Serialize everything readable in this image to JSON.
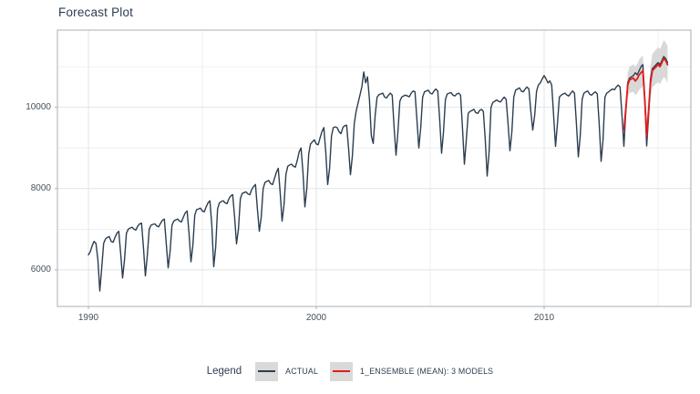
{
  "page": {
    "title": "Forecast Plot"
  },
  "colors": {
    "background": "#ffffff",
    "actual": "#2c3e50",
    "forecast": "#e31a1c",
    "conf_band": "#d8d8d8",
    "grid_major": "#e1e4e6",
    "grid_minor": "#e9ebec",
    "panel_border": "#a8afb5",
    "tick_text": "#46535f",
    "title_text": "#2c3e50",
    "legend_key_bg": "#d9d9d9"
  },
  "legend": {
    "title": "Legend",
    "items": [
      {
        "label": "ACTUAL",
        "color": "#2c3e50"
      },
      {
        "label": "1_ENSEMBLE (MEAN): 3 MODELS",
        "color": "#e31a1c"
      }
    ]
  },
  "chart_data": {
    "type": "line",
    "title": "Forecast Plot",
    "xlabel": "",
    "ylabel": "",
    "grid": true,
    "legend_position": "bottom",
    "x_start": 1990.0,
    "x_step_years": 0.083333,
    "x_ticks": [
      1990,
      2000,
      2010
    ],
    "x_minor": [
      1995,
      2005,
      2015
    ],
    "y_ticks": [
      6000,
      8000,
      10000
    ],
    "y_minor": [
      7000,
      9000,
      11000
    ],
    "xlim": [
      1988.64,
      2016.44
    ],
    "ylim": [
      5100,
      11900
    ],
    "series": [
      {
        "name": "ACTUAL",
        "color": "#2c3e50",
        "start_index": 0,
        "values": [
          6370,
          6450,
          6600,
          6700,
          6650,
          6250,
          5480,
          6050,
          6650,
          6760,
          6800,
          6820,
          6700,
          6680,
          6800,
          6900,
          6950,
          6400,
          5800,
          6250,
          6900,
          7000,
          7030,
          7050,
          7000,
          6980,
          7080,
          7130,
          7150,
          6550,
          5850,
          6350,
          7000,
          7100,
          7120,
          7130,
          7080,
          7060,
          7150,
          7220,
          7250,
          6650,
          6050,
          6450,
          7100,
          7200,
          7230,
          7250,
          7200,
          7180,
          7300,
          7400,
          7450,
          6900,
          6200,
          6600,
          7350,
          7480,
          7500,
          7520,
          7450,
          7430,
          7550,
          7650,
          7700,
          7100,
          6080,
          6550,
          7500,
          7650,
          7680,
          7700,
          7650,
          7630,
          7750,
          7820,
          7850,
          7300,
          6640,
          7000,
          7750,
          7880,
          7900,
          7920,
          7870,
          7850,
          7980,
          8050,
          8100,
          7500,
          6950,
          7300,
          8000,
          8150,
          8180,
          8200,
          8120,
          8100,
          8250,
          8400,
          8500,
          7900,
          7200,
          7600,
          8350,
          8550,
          8580,
          8600,
          8550,
          8530,
          8700,
          8900,
          9000,
          8400,
          7550,
          8000,
          8850,
          9100,
          9150,
          9200,
          9100,
          9080,
          9250,
          9400,
          9500,
          8900,
          8100,
          8500,
          9300,
          9500,
          9520,
          9500,
          9400,
          9350,
          9500,
          9550,
          9560,
          9000,
          8340,
          8800,
          9600,
          9900,
          10100,
          10300,
          10500,
          10870,
          10600,
          10750,
          10200,
          9300,
          9110,
          9800,
          10250,
          10310,
          10330,
          10350,
          10250,
          10230,
          10300,
          10350,
          10300,
          9500,
          8820,
          9400,
          10150,
          10250,
          10280,
          10300,
          10280,
          10260,
          10350,
          10400,
          10380,
          9700,
          9000,
          9500,
          10250,
          10380,
          10400,
          10420,
          10350,
          10330,
          10400,
          10450,
          10400,
          9700,
          8870,
          9400,
          10200,
          10330,
          10350,
          10360,
          10300,
          10280,
          10330,
          10350,
          10300,
          9500,
          8600,
          9200,
          9850,
          9900,
          9920,
          9950,
          9870,
          9850,
          9920,
          9950,
          9900,
          9200,
          8310,
          8900,
          10000,
          10120,
          10150,
          10180,
          10150,
          10130,
          10200,
          10250,
          10200,
          9600,
          8930,
          9400,
          10250,
          10420,
          10450,
          10480,
          10400,
          10380,
          10450,
          10500,
          10450,
          9900,
          9440,
          9800,
          10400,
          10550,
          10600,
          10700,
          10780,
          10700,
          10600,
          10650,
          10550,
          9800,
          9040,
          9600,
          10250,
          10300,
          10330,
          10350,
          10300,
          10280,
          10350,
          10400,
          10350,
          9600,
          8780,
          9300,
          10200,
          10350,
          10380,
          10400,
          10320,
          10300,
          10350,
          10380,
          10330,
          9600,
          8670,
          9200,
          10250,
          10350,
          10380,
          10420,
          10450,
          10430,
          10500,
          10550,
          10500,
          9800,
          9040,
          9900,
          10600,
          10720,
          10750,
          10780,
          10850,
          10800,
          10900,
          11000,
          11050,
          10200,
          9050,
          9800,
          10700,
          10950,
          11000,
          11050,
          11100,
          11050,
          11150,
          11250,
          11200,
          11100
        ]
      },
      {
        "name": "1_ENSEMBLE (MEAN): 3 MODELS",
        "color": "#e31a1c",
        "start_index": 282,
        "values": [
          9450,
          9950,
          10550,
          10680,
          10700,
          10720,
          10650,
          10700,
          10800,
          10850,
          10900,
          10200,
          9300,
          9900,
          10600,
          10900,
          10950,
          11000,
          11050,
          11000,
          11100,
          11200,
          11150,
          11050
        ],
        "conf_lo": [
          9200,
          9670,
          10250,
          10360,
          10370,
          10380,
          10300,
          10340,
          10430,
          10470,
          10520,
          9810,
          8900,
          9500,
          10190,
          10490,
          10530,
          10580,
          10620,
          10570,
          10660,
          10750,
          10700,
          10590
        ],
        "conf_hi": [
          9700,
          10230,
          10850,
          11000,
          11030,
          11060,
          11000,
          11060,
          11170,
          11230,
          11280,
          10590,
          9700,
          10300,
          11010,
          11310,
          11370,
          11420,
          11480,
          11430,
          11540,
          11650,
          11600,
          11510
        ]
      }
    ]
  }
}
